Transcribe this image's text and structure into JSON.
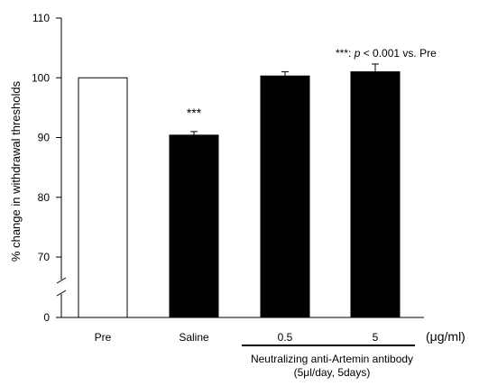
{
  "chart_data": {
    "type": "bar",
    "categories": [
      "Pre",
      "Saline",
      "0.5",
      "5"
    ],
    "values": [
      100,
      90.4,
      100.3,
      101.0
    ],
    "errors": [
      0,
      0.6,
      0.7,
      1.3
    ],
    "fills": [
      "#ffffff",
      "#000000",
      "#000000",
      "#000000"
    ],
    "significance": [
      "",
      "***",
      "",
      ""
    ],
    "ylabel": "% change in withdrawal thresholds",
    "ylim": [
      0,
      110
    ],
    "axis_break": true,
    "yticks": [
      0,
      70,
      80,
      90,
      100,
      110
    ],
    "unit_label": "(μg/ml)",
    "group_label_line1": "Neutralizing anti-Artemin antibody",
    "group_label_line2": "(5μl/day, 5days)",
    "legend_stars": "***: ",
    "legend_p": "p",
    "legend_rest": " < 0.001 vs. Pre",
    "grid": false
  }
}
